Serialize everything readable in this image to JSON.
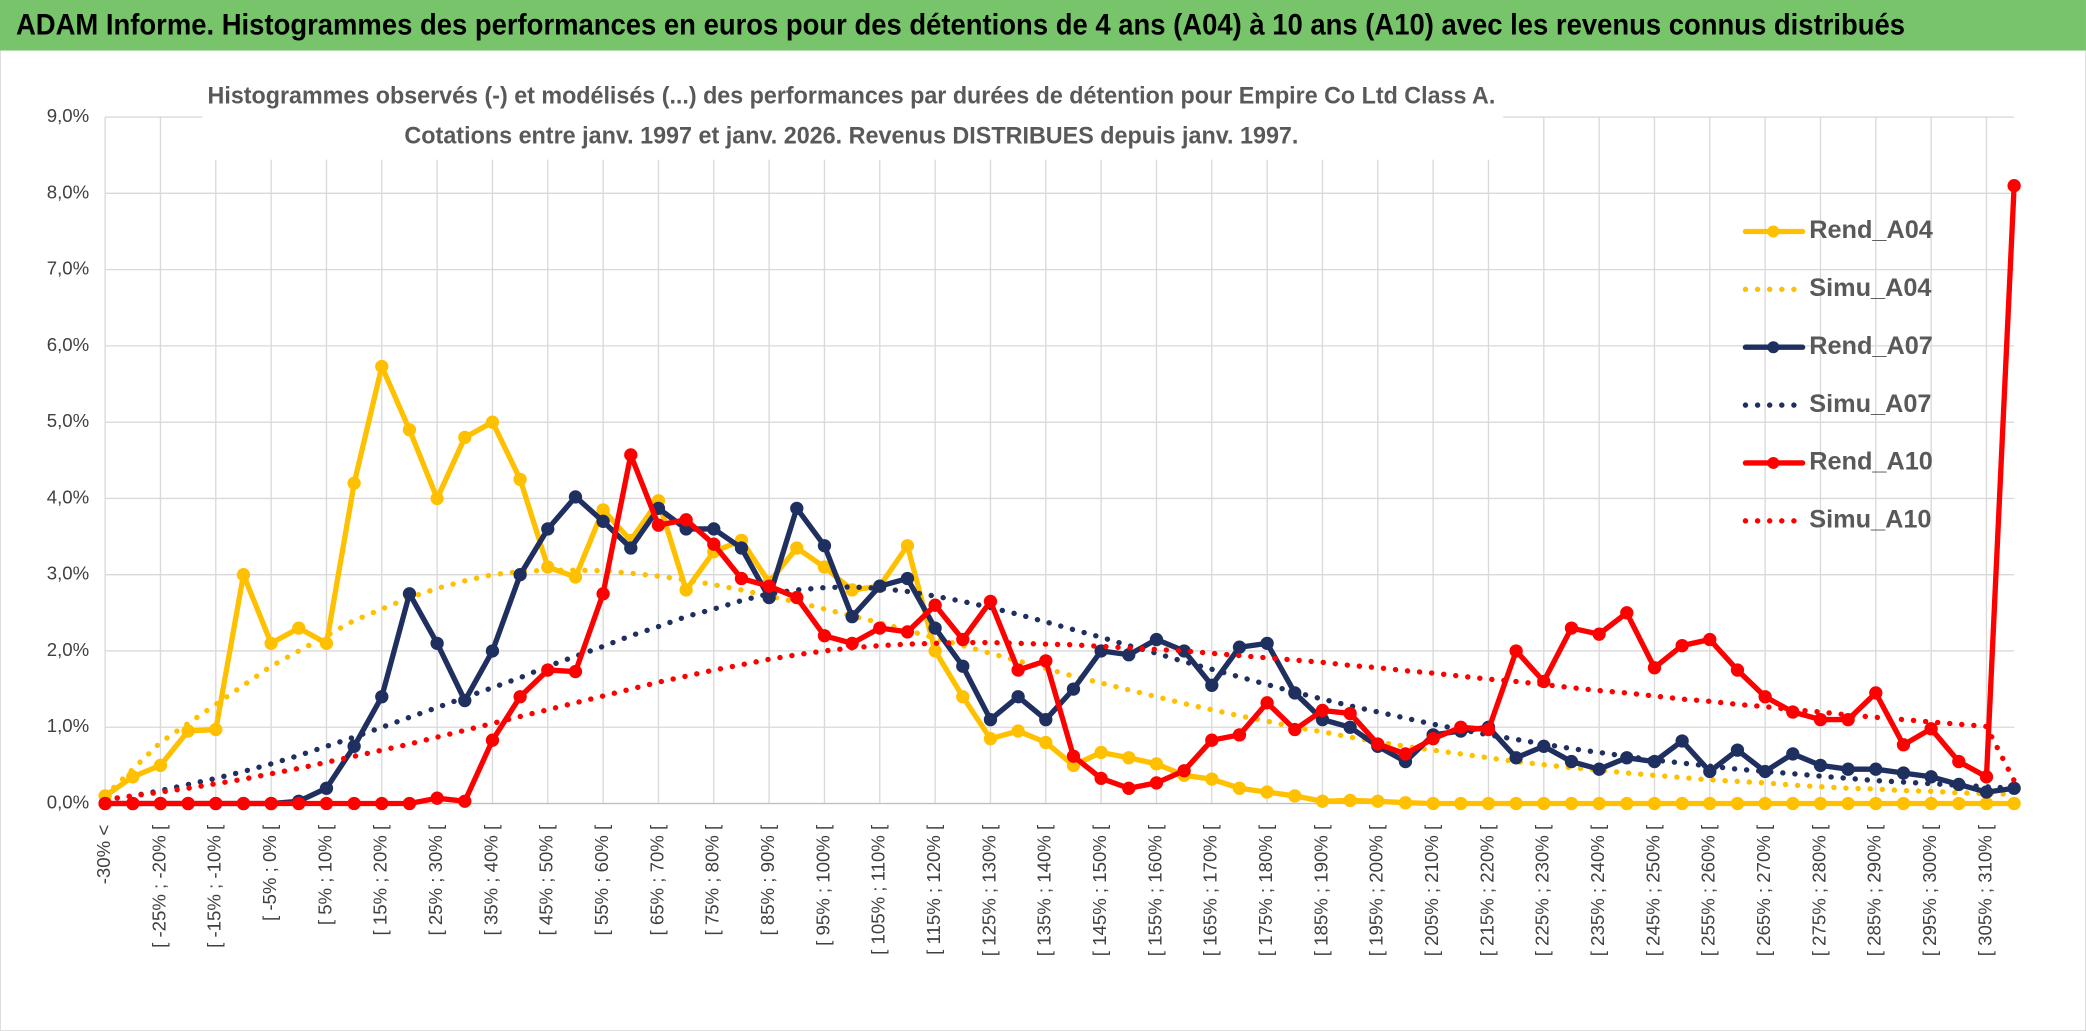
{
  "header": {
    "title": "ADAM Informe. Histogrammes des performances en euros pour des détentions de 4 ans (A04) à 10 ans (A10) avec les revenus connus distribués"
  },
  "chart_data": {
    "type": "line",
    "title": "Histogrammes observés (-) et modélisés (...) des performances par durées de détention pour Empire Co Ltd Class A.",
    "subtitle": "Cotations entre janv. 1997 et janv. 2026. Revenus DISTRIBUES depuis janv. 1997.",
    "categories": [
      "-30% <",
      null,
      "[ -25% ; -20% [",
      null,
      "[ -15% ; -10% [",
      null,
      "[ -5% ; 0% [",
      null,
      "[ 5% ; 10% [",
      null,
      "[ 15% ; 20% [",
      null,
      "[ 25% ; 30% [",
      null,
      "[ 35% ; 40% [",
      null,
      "[ 45% ; 50% [",
      null,
      "[ 55% ; 60% [",
      null,
      "[ 65% ; 70% [",
      null,
      "[ 75% ; 80% [",
      null,
      "[ 85% ; 90% [",
      null,
      "[ 95% ; 100% [",
      null,
      "[ 105% ; 110% [",
      null,
      "[ 115% ; 120% [",
      null,
      "[ 125% ; 130% [",
      null,
      "[ 135% ; 140% [",
      null,
      "[ 145% ; 150% [",
      null,
      "[ 155% ; 160% [",
      null,
      "[ 165% ; 170% [",
      null,
      "[ 175% ; 180% [",
      null,
      "[ 185% ; 190% [",
      null,
      "[ 195% ; 200% [",
      null,
      "[ 205% ; 210% [",
      null,
      "[ 215% ; 220% [",
      null,
      "[ 225% ; 230% [",
      null,
      "[ 235% ; 240% [",
      null,
      "[ 245% ; 250% [",
      null,
      "[ 255% ; 260% [",
      null,
      "[ 265% ; 270% [",
      null,
      "[ 275% ; 280% [",
      null,
      "[ 285% ; 290% [",
      null,
      "[ 295% ; 300% [",
      null,
      "[ 305% ; 310% [",
      null
    ],
    "ylim": [
      0,
      9
    ],
    "yticks": [
      {
        "value": 0,
        "label": "0,0%"
      },
      {
        "value": 1,
        "label": "1,0%"
      },
      {
        "value": 2,
        "label": "2,0%"
      },
      {
        "value": 3,
        "label": "3,0%"
      },
      {
        "value": 4,
        "label": "4,0%"
      },
      {
        "value": 5,
        "label": "5,0%"
      },
      {
        "value": 6,
        "label": "6,0%"
      },
      {
        "value": 7,
        "label": "7,0%"
      },
      {
        "value": 8,
        "label": "8,0%"
      },
      {
        "value": 9,
        "label": "9,0%"
      }
    ],
    "grid": true,
    "legend": "right",
    "series": [
      {
        "name": "Rend_A04",
        "color": "#ffc000",
        "dash": "solid",
        "markers": true,
        "values": [
          0.1,
          0.35,
          0.5,
          0.95,
          0.97,
          3.0,
          2.1,
          2.3,
          2.1,
          4.2,
          5.73,
          4.9,
          4.0,
          4.8,
          5.0,
          4.25,
          3.1,
          2.97,
          3.85,
          3.45,
          3.97,
          2.8,
          3.3,
          3.45,
          2.9,
          3.35,
          3.1,
          2.8,
          2.85,
          3.38,
          2.0,
          1.4,
          0.85,
          0.95,
          0.8,
          0.5,
          0.67,
          0.6,
          0.52,
          0.37,
          0.32,
          0.2,
          0.15,
          0.1,
          0.03,
          0.04,
          0.03,
          0.01,
          0,
          0,
          0,
          0,
          0,
          0,
          0,
          0,
          0,
          0,
          0,
          0,
          0,
          0,
          0,
          0,
          0,
          0,
          0,
          0,
          0,
          0
        ]
      },
      {
        "name": "Simu_A04",
        "color": "#ffc000",
        "dash": "dotted",
        "markers": false,
        "values": [
          0.1,
          0.45,
          0.8,
          1.05,
          1.3,
          1.55,
          1.8,
          2.0,
          2.2,
          2.4,
          2.55,
          2.7,
          2.82,
          2.92,
          3.0,
          3.04,
          3.06,
          3.06,
          3.05,
          3.02,
          2.98,
          2.93,
          2.87,
          2.8,
          2.72,
          2.64,
          2.55,
          2.46,
          2.37,
          2.27,
          2.17,
          2.07,
          1.97,
          1.87,
          1.77,
          1.67,
          1.58,
          1.49,
          1.4,
          1.31,
          1.23,
          1.15,
          1.08,
          1.0,
          0.94,
          0.87,
          0.81,
          0.75,
          0.7,
          0.65,
          0.6,
          0.55,
          0.51,
          0.47,
          0.44,
          0.4,
          0.37,
          0.34,
          0.31,
          0.29,
          0.27,
          0.24,
          0.22,
          0.2,
          0.19,
          0.17,
          0.16,
          0.14,
          0.13,
          0.12
        ]
      },
      {
        "name": "Rend_A07",
        "color": "#1f3060",
        "dash": "solid",
        "markers": true,
        "values": [
          0,
          0,
          0,
          0,
          0,
          0,
          0,
          0.03,
          0.2,
          0.75,
          1.4,
          2.75,
          2.1,
          1.35,
          2.0,
          3.0,
          3.6,
          4.02,
          3.7,
          3.35,
          3.87,
          3.6,
          3.6,
          3.35,
          2.7,
          3.87,
          3.38,
          2.45,
          2.85,
          2.95,
          2.3,
          1.8,
          1.1,
          1.4,
          1.1,
          1.5,
          2.0,
          1.95,
          2.15,
          2.0,
          1.55,
          2.05,
          2.1,
          1.45,
          1.1,
          1.0,
          0.75,
          0.55,
          0.9,
          0.95,
          1.0,
          0.6,
          0.75,
          0.55,
          0.45,
          0.6,
          0.55,
          0.82,
          0.42,
          0.7,
          0.42,
          0.65,
          0.5,
          0.45,
          0.45,
          0.4,
          0.35,
          0.25,
          0.15,
          0.2
        ]
      },
      {
        "name": "Simu_A07",
        "color": "#1f3060",
        "dash": "dotted",
        "markers": false,
        "values": [
          0.05,
          0.1,
          0.17,
          0.25,
          0.33,
          0.42,
          0.52,
          0.63,
          0.75,
          0.87,
          1.0,
          1.13,
          1.26,
          1.39,
          1.52,
          1.65,
          1.8,
          1.93,
          2.06,
          2.2,
          2.32,
          2.45,
          2.55,
          2.66,
          2.75,
          2.8,
          2.83,
          2.84,
          2.82,
          2.78,
          2.72,
          2.65,
          2.57,
          2.48,
          2.38,
          2.28,
          2.18,
          2.07,
          1.97,
          1.86,
          1.76,
          1.66,
          1.56,
          1.46,
          1.37,
          1.28,
          1.2,
          1.12,
          1.04,
          0.97,
          0.9,
          0.84,
          0.78,
          0.72,
          0.67,
          0.62,
          0.57,
          0.53,
          0.49,
          0.45,
          0.42,
          0.39,
          0.36,
          0.33,
          0.3,
          0.28,
          0.26,
          0.24,
          0.22,
          0.2
        ]
      },
      {
        "name": "Rend_A10",
        "color": "#ff0000",
        "dash": "solid",
        "markers": true,
        "values": [
          0,
          0,
          0,
          0,
          0,
          0,
          0,
          0,
          0,
          0,
          0,
          0,
          0.07,
          0.03,
          0.83,
          1.4,
          1.75,
          1.73,
          2.75,
          4.57,
          3.65,
          3.72,
          3.4,
          2.95,
          2.85,
          2.7,
          2.2,
          2.1,
          2.3,
          2.25,
          2.6,
          2.15,
          2.65,
          1.75,
          1.87,
          0.62,
          0.33,
          0.2,
          0.27,
          0.43,
          0.83,
          0.9,
          1.32,
          0.97,
          1.22,
          1.18,
          0.78,
          0.65,
          0.85,
          1.0,
          0.97,
          2.0,
          1.6,
          2.3,
          2.22,
          2.5,
          1.78,
          2.07,
          2.15,
          1.75,
          1.4,
          1.2,
          1.1,
          1.1,
          1.45,
          0.77,
          0.98,
          0.55,
          0.35,
          8.1
        ]
      },
      {
        "name": "Simu_A10",
        "color": "#ff0000",
        "dash": "dotted",
        "markers": false,
        "values": [
          0.05,
          0.1,
          0.15,
          0.2,
          0.26,
          0.32,
          0.39,
          0.46,
          0.54,
          0.62,
          0.7,
          0.78,
          0.87,
          0.96,
          1.05,
          1.14,
          1.23,
          1.32,
          1.41,
          1.5,
          1.59,
          1.67,
          1.75,
          1.82,
          1.89,
          1.95,
          2.0,
          2.04,
          2.07,
          2.09,
          2.1,
          2.11,
          2.11,
          2.1,
          2.09,
          2.08,
          2.06,
          2.04,
          2.02,
          2.0,
          1.97,
          1.94,
          1.91,
          1.88,
          1.85,
          1.81,
          1.78,
          1.74,
          1.71,
          1.67,
          1.63,
          1.6,
          1.56,
          1.52,
          1.48,
          1.45,
          1.41,
          1.37,
          1.34,
          1.3,
          1.27,
          1.23,
          1.2,
          1.16,
          1.13,
          1.1,
          1.07,
          1.04,
          1.01,
          0.3
        ]
      }
    ]
  }
}
